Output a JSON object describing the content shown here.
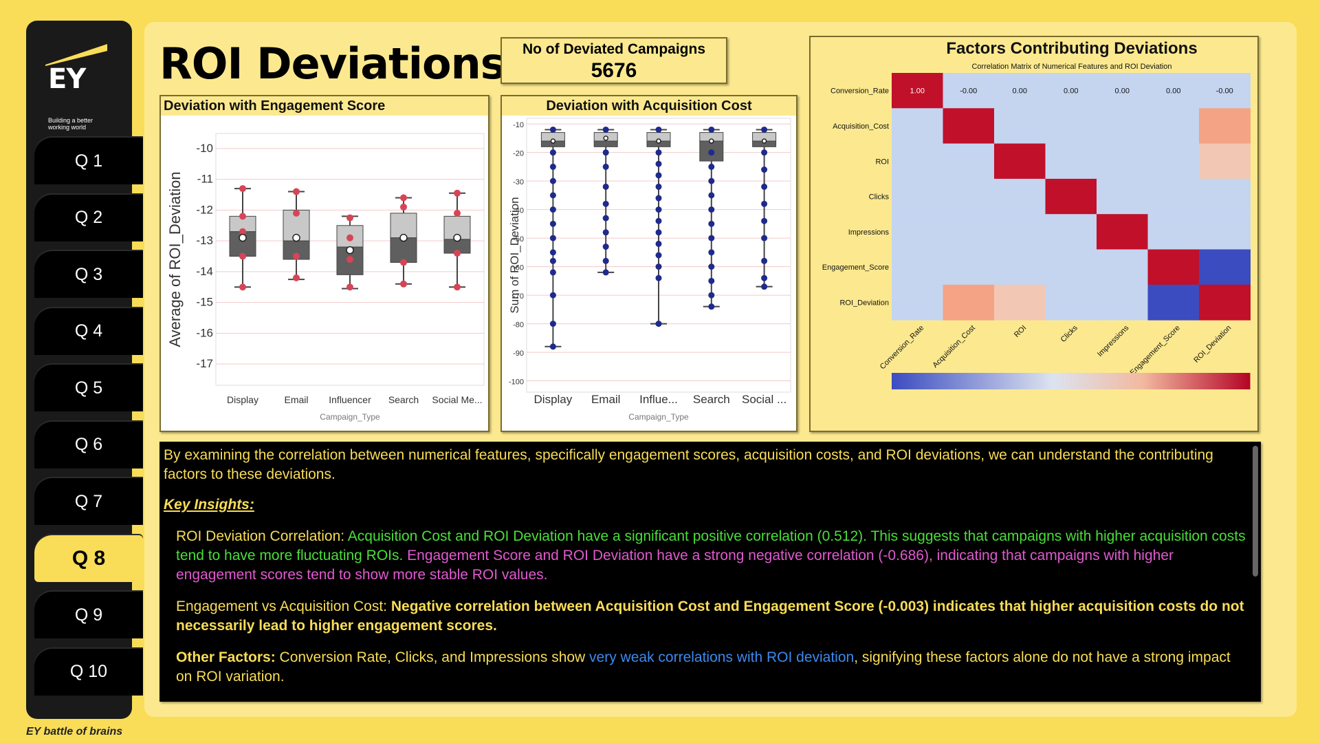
{
  "brand": {
    "logo_text": "EY",
    "tagline_1": "Building a better",
    "tagline_2": "working world",
    "footer": "EY battle of brains"
  },
  "nav": {
    "items": [
      {
        "label": "Q 1"
      },
      {
        "label": "Q 2"
      },
      {
        "label": "Q 3"
      },
      {
        "label": "Q 4"
      },
      {
        "label": "Q 5"
      },
      {
        "label": "Q 6"
      },
      {
        "label": "Q 7"
      },
      {
        "label": "Q 8"
      },
      {
        "label": "Q 9"
      },
      {
        "label": "Q 10"
      }
    ],
    "active_index": 7
  },
  "page": {
    "title": "ROI Deviations"
  },
  "kpi": {
    "label": "No of Deviated Campaigns",
    "value": "5676"
  },
  "insights": {
    "intro": "By examining the correlation between numerical features, specifically engagement scores, acquisition costs, and ROI deviations, we can understand the contributing factors to these deviations.",
    "heading": "Key Insights:",
    "b1_lead": "ROI Deviation Correlation: ",
    "b1_green": "Acquisition Cost and ROI Deviation have a significant positive correlation (0.512). This suggests that campaigns with higher acquisition costs tend to have more fluctuating ROIs.",
    "b1_magenta": " Engagement Score and ROI Deviation have a strong negative correlation (-0.686), indicating that campaigns with higher engagement scores tend to show more stable ROI values.",
    "b2_lead": "Engagement vs Acquisition Cost: ",
    "b2_yellow": "Negative correlation between Acquisition Cost and Engagement Score (-0.003) indicates that higher acquisition costs do not necessarily lead to higher engagement scores.",
    "b3_lead": "Other Factors: ",
    "b3_white": "Conversion Rate, Clicks, and Impressions show ",
    "b3_blue": "very weak correlations with ROI deviation",
    "b3_tail": ", signifying these factors alone do not have a strong impact on ROI variation."
  },
  "colors": {
    "accent": "#f9dd58",
    "sidebar": "#1a1a1a",
    "box_upper": "#c8c8c8",
    "box_lower": "#5f5f5f",
    "point_red": "#d64556",
    "point_navy": "#1f2a8c",
    "heat_hot": "#c0102a",
    "heat_cold": "#3b4cc0",
    "heat_bg": "#c5d5f0"
  },
  "chart_data": [
    {
      "type": "box",
      "title": "Deviation with Engagement Score",
      "xlabel": "Campaign_Type",
      "ylabel": "Average of ROI_Deviation",
      "ylim": [
        -17.6,
        -9.6
      ],
      "yticks": [
        -10,
        -11,
        -12,
        -13,
        -14,
        -15,
        -16,
        -17
      ],
      "categories": [
        "Display",
        "Email",
        "Influencer",
        "Search",
        "Social Me..."
      ],
      "boxes": [
        {
          "min": -14.5,
          "q1": -13.5,
          "median": -12.7,
          "q3": -12.2,
          "max": -11.3,
          "mean": -12.9,
          "points": [
            -11.3,
            -12.2,
            -12.7,
            -13.5,
            -14.5
          ]
        },
        {
          "min": -14.25,
          "q1": -13.6,
          "median": -13.0,
          "q3": -12.0,
          "max": -11.4,
          "mean": -12.9,
          "points": [
            -11.4,
            -12.1,
            -12.9,
            -13.5,
            -14.2
          ]
        },
        {
          "min": -14.55,
          "q1": -14.1,
          "median": -13.2,
          "q3": -12.5,
          "max": -12.2,
          "mean": -13.3,
          "points": [
            -12.25,
            -12.9,
            -13.6,
            -14.5
          ]
        },
        {
          "min": -14.4,
          "q1": -13.7,
          "median": -12.9,
          "q3": -12.1,
          "max": -11.6,
          "mean": -12.9,
          "points": [
            -11.6,
            -11.9,
            -12.9,
            -13.7,
            -14.4
          ]
        },
        {
          "min": -14.5,
          "q1": -13.4,
          "median": -12.95,
          "q3": -12.2,
          "max": -11.45,
          "mean": -12.9,
          "points": [
            -11.45,
            -12.1,
            -12.9,
            -13.4,
            -14.5
          ]
        }
      ]
    },
    {
      "type": "box",
      "title": "Deviation with Acquisition Cost",
      "xlabel": "Campaign_Type",
      "ylabel": "Sum of ROI_Deviation",
      "ylim": [
        -103,
        -9
      ],
      "yticks": [
        -10,
        -20,
        -30,
        -40,
        -50,
        -60,
        -70,
        -80,
        -90,
        -100
      ],
      "categories": [
        "Display",
        "Email",
        "Influe...",
        "Search",
        "Social ..."
      ],
      "boxes": [
        {
          "min": -88,
          "q1": -18,
          "median": -16,
          "q3": -13,
          "max": -12,
          "mean": -16,
          "points": [
            -12,
            -20,
            -25,
            -30,
            -35,
            -40,
            -45,
            -50,
            -55,
            -58,
            -62,
            -70,
            -80,
            -88
          ]
        },
        {
          "min": -62,
          "q1": -18,
          "median": -16,
          "q3": -13,
          "max": -12,
          "mean": -15,
          "points": [
            -12,
            -20,
            -25,
            -32,
            -38,
            -43,
            -48,
            -53,
            -58,
            -62
          ]
        },
        {
          "min": -80,
          "q1": -18,
          "median": -16,
          "q3": -13,
          "max": -12,
          "mean": -16,
          "points": [
            -12,
            -20,
            -24,
            -28,
            -32,
            -36,
            -40,
            -44,
            -48,
            -52,
            -56,
            -60,
            -64,
            -80
          ]
        },
        {
          "min": -74,
          "q1": -23,
          "median": -16,
          "q3": -13,
          "max": -12,
          "mean": -16,
          "points": [
            -12,
            -20,
            -25,
            -30,
            -35,
            -40,
            -45,
            -50,
            -55,
            -60,
            -65,
            -70,
            -74
          ]
        },
        {
          "min": -67,
          "q1": -18,
          "median": -16,
          "q3": -13,
          "max": -12,
          "mean": -16,
          "points": [
            -12,
            -20,
            -26,
            -32,
            -38,
            -44,
            -50,
            -58,
            -64,
            -67
          ]
        }
      ]
    },
    {
      "type": "heatmap",
      "title": "Factors Contributing Deviations",
      "subtitle": "Correlation Matrix of Numerical Features and ROI Deviation",
      "labels": [
        "Conversion_Rate",
        "Acquisition_Cost",
        "ROI",
        "Clicks",
        "Impressions",
        "Engagement_Score",
        "ROI_Deviation"
      ],
      "matrix": [
        [
          1.0,
          -0.0,
          0.0,
          0.0,
          0.0,
          0.0,
          -0.0
        ],
        [
          -0.0,
          1.0,
          0.0,
          0.0,
          0.0,
          -0.003,
          0.512
        ],
        [
          0.0,
          0.0,
          1.0,
          0.0,
          0.0,
          0.0,
          0.3
        ],
        [
          0.0,
          0.0,
          0.0,
          1.0,
          0.0,
          0.0,
          0.0
        ],
        [
          0.0,
          0.0,
          0.0,
          0.0,
          1.0,
          0.0,
          0.0
        ],
        [
          0.0,
          -0.003,
          0.0,
          0.0,
          0.0,
          1.0,
          -0.686
        ],
        [
          -0.0,
          0.512,
          0.3,
          0.0,
          0.0,
          -0.686,
          1.0
        ]
      ],
      "first_row_labels": [
        "1.00",
        "-0.00",
        "0.00",
        "0.00",
        "0.00",
        "0.00",
        "-0.00"
      ],
      "colorbar": {
        "range": [
          -0.686,
          1.0
        ]
      }
    }
  ]
}
